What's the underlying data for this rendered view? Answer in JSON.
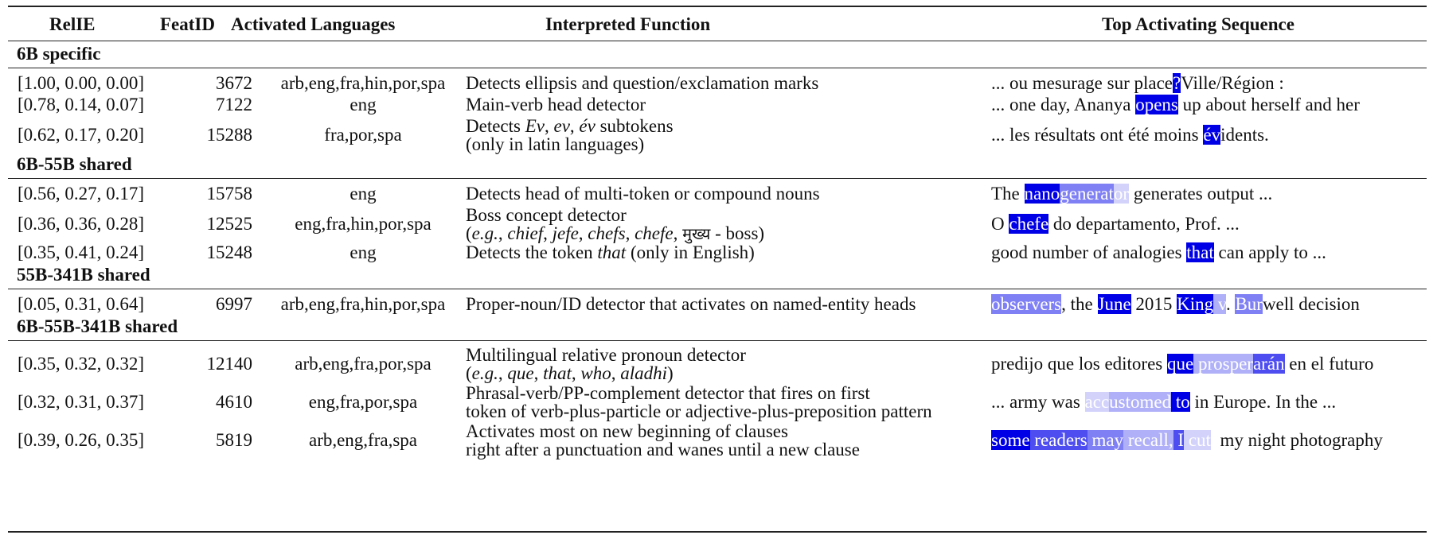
{
  "table": {
    "headers": {
      "relie": "RelIE",
      "featid": "FeatID",
      "langs": "Activated Languages",
      "func": "Interpreted Function",
      "seq": "Top Activating Sequence"
    },
    "sections": [
      {
        "title": "6B specific"
      },
      {
        "title": "6B-55B shared"
      },
      {
        "title": "55B-341B shared"
      },
      {
        "title": "6B-55B-341B shared"
      }
    ],
    "rows": [
      {
        "relie": "[1.00, 0.00, 0.00]",
        "featid": "3672",
        "langs": "arb,eng,fra,hin,por,spa",
        "func_line1": "Detects ellipsis and question/exclamation marks",
        "seq": [
          {
            "t": "... ou mesurage sur place",
            "s": "none"
          },
          {
            "t": "?",
            "s": "dark"
          },
          {
            "t": "Ville/Région :",
            "s": "none"
          }
        ]
      },
      {
        "relie": "[0.78, 0.14, 0.07]",
        "featid": "7122",
        "langs": "eng",
        "func_line1": "Main-verb head detector",
        "seq": [
          {
            "t": "... one day, Ananya ",
            "s": "none"
          },
          {
            "t": "opens",
            "s": "dark"
          },
          {
            "t": " up about herself and her",
            "s": "none"
          }
        ]
      },
      {
        "relie": "[0.62, 0.17, 0.20]",
        "featid": "15288",
        "langs": "fra,por,spa",
        "func_line1_pre": "Detects ",
        "func_line1_it1": "Ev",
        "func_line1_sep1": ", ",
        "func_line1_it2": "ev",
        "func_line1_sep2": ", ",
        "func_line1_it3": "év",
        "func_line1_post": " subtokens",
        "func_line2": "(only in latin languages)",
        "seq": [
          {
            "t": "... les résultats ont été moins ",
            "s": "none"
          },
          {
            "t": "év",
            "s": "dark"
          },
          {
            "t": "idents.",
            "s": "none"
          }
        ]
      },
      {
        "relie": "[0.56, 0.27, 0.17]",
        "featid": "15758",
        "langs": "eng",
        "func_line1": "Detects head of multi-token or compound nouns",
        "seq": [
          {
            "t": "The ",
            "s": "none"
          },
          {
            "t": "nano",
            "s": "dark"
          },
          {
            "t": "generat",
            "s": "mid"
          },
          {
            "t": "or",
            "s": "pale"
          },
          {
            "t": " generates output ...",
            "s": "none"
          }
        ]
      },
      {
        "relie": "[0.36, 0.36, 0.28]",
        "featid": "12525",
        "langs": "eng,fra,hin,por,spa",
        "func_line1": "Boss concept detector",
        "func_line2_open": "(",
        "func_line2_eg": "e.g.",
        "func_line2_sep0": ", ",
        "func_line2_w1": "chief",
        "func_line2_sep1": ", ",
        "func_line2_w2": "jefe",
        "func_line2_sep2": ", ",
        "func_line2_w3": "chefs",
        "func_line2_sep3": ", ",
        "func_line2_w4": "chefe",
        "func_line2_sep4": ", ",
        "func_line2_w5": "मुख्य",
        "func_line2_tail": " - boss)",
        "seq": [
          {
            "t": "O ",
            "s": "none"
          },
          {
            "t": "chefe",
            "s": "dark"
          },
          {
            "t": " do departamento, Prof. ...",
            "s": "none"
          }
        ]
      },
      {
        "relie": "[0.35, 0.41, 0.24]",
        "featid": "15248",
        "langs": "eng",
        "func_pre": "Detects the token ",
        "func_it": "that",
        "func_post": " (only in English)",
        "seq": [
          {
            "t": "good number of analogies ",
            "s": "none"
          },
          {
            "t": "that",
            "s": "dark"
          },
          {
            "t": " can apply to ...",
            "s": "none"
          }
        ]
      },
      {
        "relie": "[0.05, 0.31, 0.64]",
        "featid": "6997",
        "langs": "arb,eng,fra,hin,por,spa",
        "func_line1": "Proper-noun/ID detector that activates on named-entity heads",
        "seq": [
          {
            "t": "observers",
            "s": "mid"
          },
          {
            "t": ", the ",
            "s": "none"
          },
          {
            "t": "June",
            "s": "dark"
          },
          {
            "t": " 2015 ",
            "s": "none"
          },
          {
            "t": "King",
            "s": "dark"
          },
          {
            "t": " v",
            "s": "light"
          },
          {
            "t": ". ",
            "s": "none"
          },
          {
            "t": "Bur",
            "s": "mid"
          },
          {
            "t": "well decision",
            "s": "none"
          }
        ]
      },
      {
        "relie": "[0.35, 0.32, 0.32]",
        "featid": "12140",
        "langs": "arb,eng,fra,por,spa",
        "func_line1": "Multilingual relative pronoun detector",
        "func_line2_open": "(",
        "func_line2_eg": "e.g.",
        "func_line2_sep0": ", ",
        "func_line2_w1": "que",
        "func_line2_sep1": ", ",
        "func_line2_w2": "that",
        "func_line2_sep2": ", ",
        "func_line2_w3": "who",
        "func_line2_sep3": ", ",
        "func_line2_w4": "aladhi",
        "func_line2_tail": ")",
        "seq": [
          {
            "t": "predijo que los editores ",
            "s": "none"
          },
          {
            "t": "que",
            "s": "dark"
          },
          {
            "t": " prosper",
            "s": "light"
          },
          {
            "t": "arán",
            "s": "med"
          },
          {
            "t": " en el futuro",
            "s": "none"
          }
        ]
      },
      {
        "relie": "[0.32, 0.31, 0.37]",
        "featid": "4610",
        "langs": "eng,fra,por,spa",
        "func_line1": "Phrasal-verb/PP-complement detector that fires on first",
        "func_line2": "token of verb-plus-particle or adjective-plus-preposition pattern",
        "seq": [
          {
            "t": "... army was ",
            "s": "none"
          },
          {
            "t": "acc",
            "s": "pale"
          },
          {
            "t": "ustomed",
            "s": "light"
          },
          {
            "t": " to",
            "s": "dark"
          },
          {
            "t": " in Europe. In the ...",
            "s": "none"
          }
        ]
      },
      {
        "relie": "[0.39, 0.26, 0.35]",
        "featid": "5819",
        "langs": "arb,eng,fra,spa",
        "func_line1": "Activates most on new beginning of clauses",
        "func_line2": "right after a punctuation and wanes until a new clause",
        "seq": [
          {
            "t": "some",
            "s": "dark"
          },
          {
            "t": " readers",
            "s": "med"
          },
          {
            "t": " may",
            "s": "mid"
          },
          {
            "t": " recall",
            "s": "light"
          },
          {
            "t": ",",
            "s": "light"
          },
          {
            "t": " I",
            "s": "med"
          },
          {
            "t": " cut",
            "s": "pale"
          },
          {
            "t": "  my night photography",
            "s": "none"
          }
        ]
      }
    ]
  },
  "colors": {
    "dark": "#0000e6",
    "med": "#4d4df0",
    "mid": "#8080f5",
    "light": "#b0b0f8",
    "pale": "#d2d2fb"
  }
}
